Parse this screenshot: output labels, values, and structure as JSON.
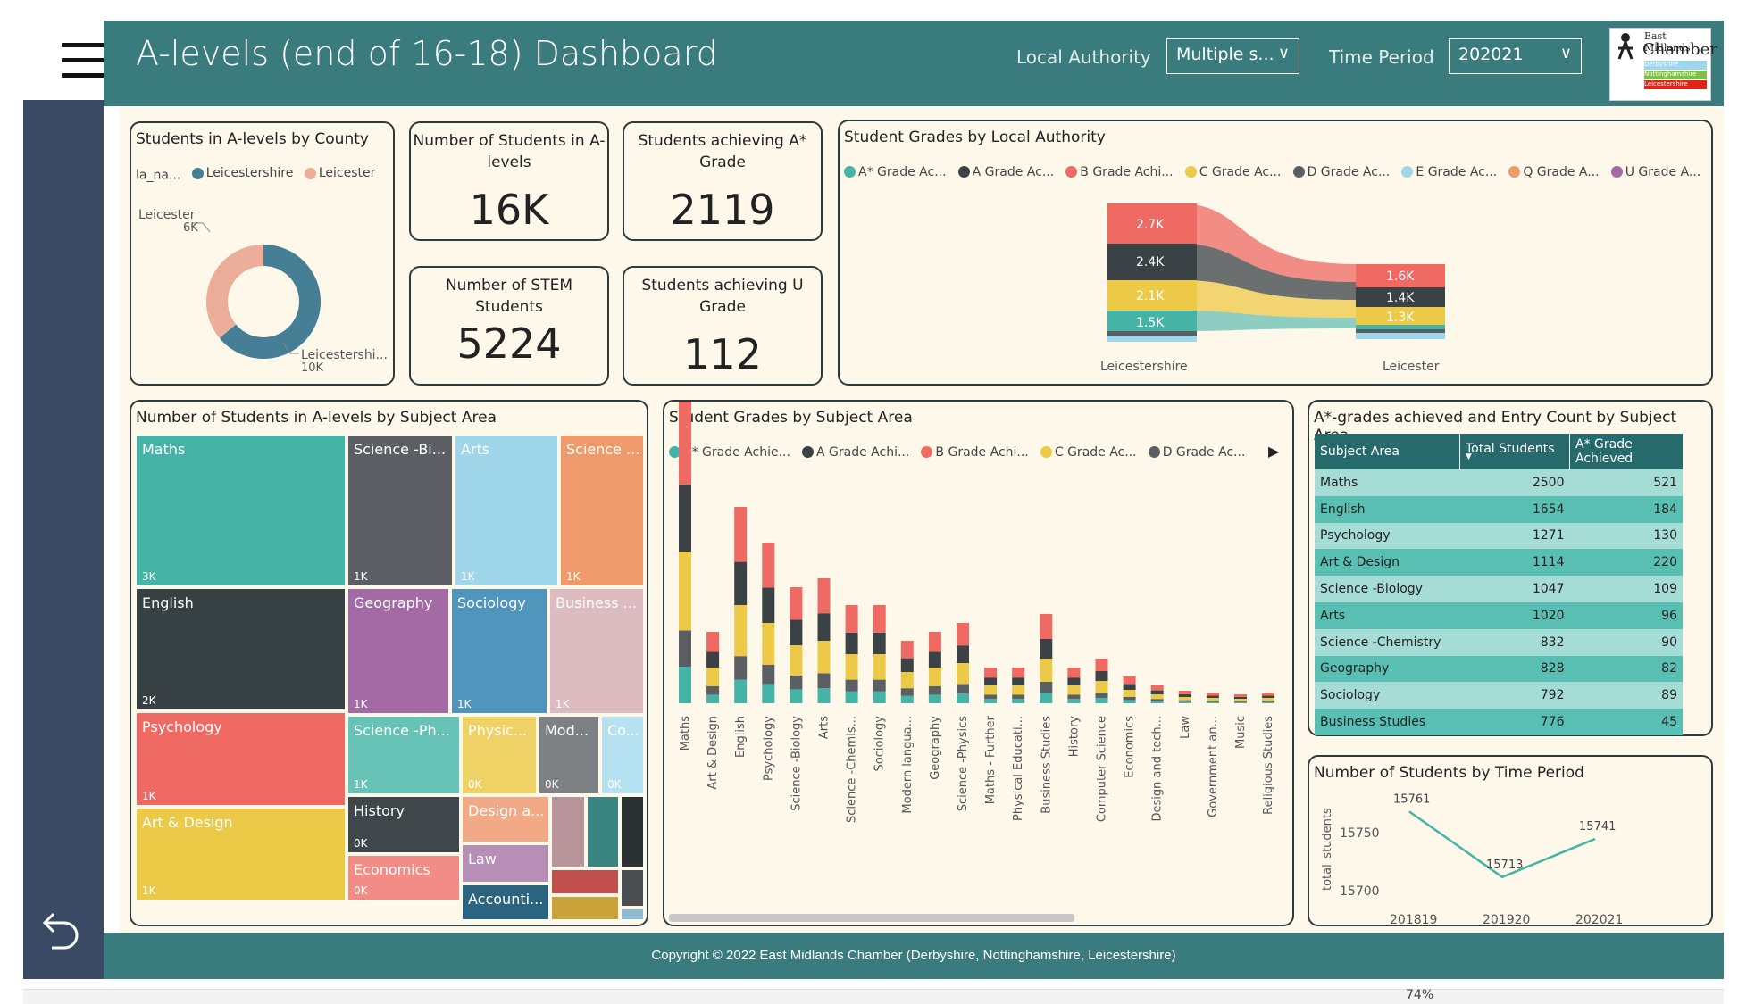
{
  "header": {
    "title": "A-levels (end of 16-18) Dashboard",
    "local_authority_label": "Local Authority",
    "local_authority_value": "Multiple s...",
    "time_period_label": "Time Period",
    "time_period_value": "202021",
    "logo_name": "East Midlands",
    "logo_title": "Chamber",
    "logo_regions": [
      "Derbyshire",
      "Nottinghamshire",
      "Leicestershire"
    ]
  },
  "colors": {
    "teal": "#3a7b7e",
    "sidebar": "#3b4a64",
    "canvas": "#fdf8ea",
    "g_astar": "#45b3a6",
    "g_a": "#3a4245",
    "g_b": "#ee6a63",
    "g_c": "#edc948",
    "g_d": "#5b5f63",
    "g_e": "#9fd6ea",
    "g_q": "#ef9a6b",
    "g_u": "#a46aa6"
  },
  "county_donut": {
    "title": "Students in A-levels by County",
    "legend_title": "la_na...",
    "legend": [
      "Leicestershire",
      "Leicester"
    ],
    "leicester_label": "Leicester",
    "leicester_value": "6K",
    "leicestershire_label": "Leicestershi...",
    "leicestershire_value": "10K",
    "shares": [
      0.64,
      0.36
    ]
  },
  "kpis": {
    "students_label": "Number of Students in A-levels",
    "students_value": "16K",
    "astar_label": "Students achieving A* Grade",
    "astar_value": "2119",
    "stem_label": "Number of STEM Students",
    "stem_value": "5224",
    "u_label": "Students achieving U Grade",
    "u_value": "112"
  },
  "grades_by_la": {
    "title": "Student Grades by Local Authority",
    "legend": [
      "A* Grade Ac...",
      "A Grade Ac...",
      "B Grade Achi...",
      "C Grade Ac...",
      "D Grade Ac...",
      "E Grade Ac...",
      "Q Grade A...",
      "U Grade A..."
    ],
    "left_name": "Leicestershire",
    "right_name": "Leicester",
    "left_labels": [
      "2.7K",
      "2.4K",
      "2.1K",
      "1.5K"
    ],
    "right_labels": [
      "1.6K",
      "1.4K",
      "1.3K"
    ]
  },
  "treemap": {
    "title": "Number of Students in A-levels by Subject Area",
    "tiles": [
      {
        "label": "Maths",
        "value": "3K"
      },
      {
        "label": "English",
        "value": "2K"
      },
      {
        "label": "Psychology",
        "value": "1K"
      },
      {
        "label": "Art & Design",
        "value": "1K"
      },
      {
        "label": "Science -Bi...",
        "value": "1K"
      },
      {
        "label": "Arts",
        "value": "1K"
      },
      {
        "label": "Science ...",
        "value": "1K"
      },
      {
        "label": "Geography",
        "value": "1K"
      },
      {
        "label": "Sociology",
        "value": "1K"
      },
      {
        "label": "Business ...",
        "value": "1K"
      },
      {
        "label": "Science -Ph...",
        "value": "1K"
      },
      {
        "label": "Physic...",
        "value": "0K"
      },
      {
        "label": "Mod...",
        "value": "0K"
      },
      {
        "label": "Co...",
        "value": "0K"
      },
      {
        "label": "History",
        "value": "0K"
      },
      {
        "label": "Economics",
        "value": "0K"
      },
      {
        "label": "Design a...",
        "value": ""
      },
      {
        "label": "Law",
        "value": ""
      },
      {
        "label": "Accounti...",
        "value": ""
      }
    ]
  },
  "grades_by_subject": {
    "title": "Student Grades by Subject Area",
    "legend": [
      "A* Grade Achie...",
      "A Grade Achi...",
      "B Grade Achi...",
      "C Grade Ac...",
      "D Grade Ac..."
    ],
    "subjects": [
      "Maths",
      "Art & Design",
      "English",
      "Psychology",
      "Science -Biology",
      "Arts",
      "Science -Chemis...",
      "Sociology",
      "Modern langua...",
      "Geography",
      "Science -Physics",
      "Maths - Further",
      "Physical Educati...",
      "Business Studies",
      "History",
      "Computer Science",
      "Economics",
      "Design and tech...",
      "Law",
      "Government an...",
      "Music",
      "Religious Studies"
    ]
  },
  "subject_table": {
    "title": "A*-grades achieved and Entry Count by Subject Area",
    "headers": [
      "Subject Area",
      "Total Students",
      "A* Grade Achieved"
    ],
    "rows": [
      [
        "Maths",
        "2500",
        "521"
      ],
      [
        "English",
        "1654",
        "184"
      ],
      [
        "Psychology",
        "1271",
        "130"
      ],
      [
        "Art & Design",
        "1114",
        "220"
      ],
      [
        "Science -Biology",
        "1047",
        "109"
      ],
      [
        "Arts",
        "1020",
        "96"
      ],
      [
        "Science -Chemistry",
        "832",
        "90"
      ],
      [
        "Geography",
        "828",
        "82"
      ],
      [
        "Sociology",
        "792",
        "89"
      ],
      [
        "Business Studies",
        "776",
        "45"
      ]
    ]
  },
  "chart_data": {
    "type": "line",
    "title": "Number of Students by Time Period",
    "ylabel": "total_students",
    "x": [
      "201819",
      "201920",
      "202021"
    ],
    "values": [
      15761,
      15713,
      15741
    ],
    "value_labels": [
      "15761",
      "15713",
      "15741"
    ],
    "y_ticks": [
      "15750",
      "15700"
    ],
    "ylim": [
      15690,
      15775
    ]
  },
  "footer": {
    "copyright": "Copyright ©  2022 East Midlands Chamber (Derbyshire, Nottinghamshire, Leicestershire)"
  },
  "bottom": {
    "zoom": "74%"
  }
}
